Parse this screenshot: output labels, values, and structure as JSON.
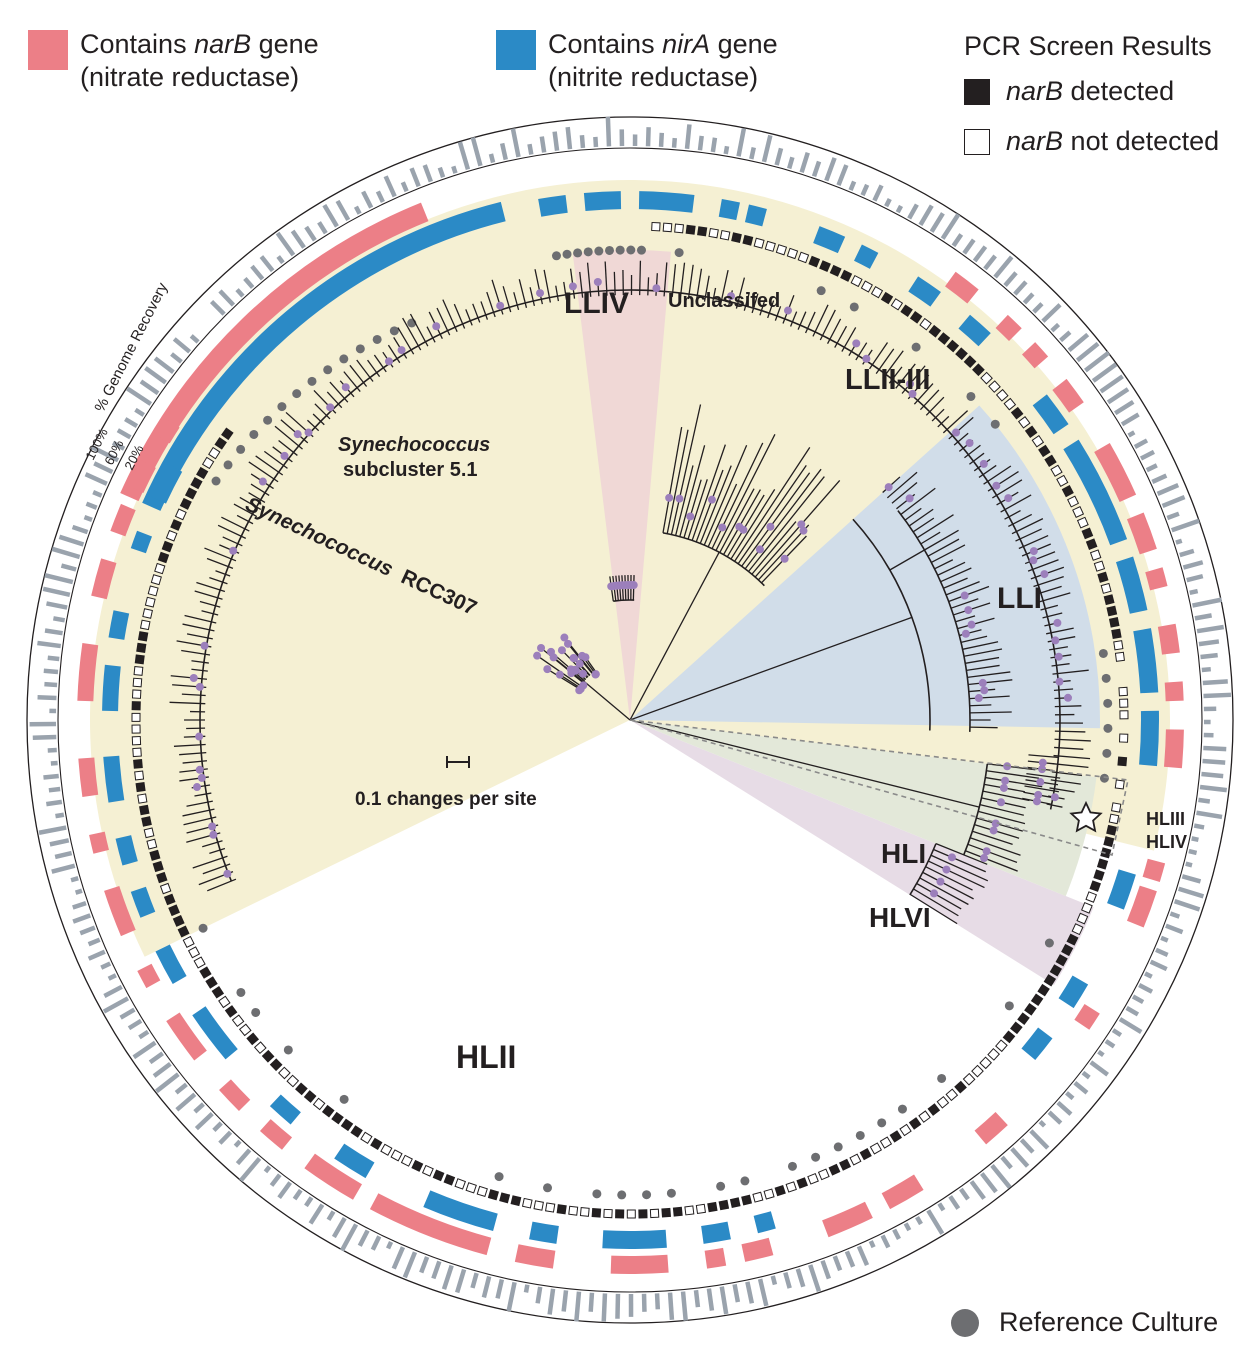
{
  "legend": {
    "narB_box": {
      "prefix": "Contains ",
      "gene": "narB",
      "suffix": " gene",
      "line2": "(nitrate reductase)",
      "color": "#ec7f87"
    },
    "nirA_box": {
      "prefix": "Contains ",
      "gene": "nirA",
      "suffix": " gene",
      "line2": "(nitrite reductase)",
      "color": "#2b8ac6"
    },
    "pcr": {
      "title": "PCR Screen Results",
      "detected_gene": "narB",
      "detected_suffix": " detected",
      "not_detected_gene": "narB",
      "not_detected_suffix": " not detected"
    },
    "reference": "Reference Culture"
  },
  "ring_labels": {
    "genome_recovery": "% Genome Recovery",
    "ticks": [
      "100%",
      "60%",
      "20%"
    ]
  },
  "clades": {
    "llv": "LLIV",
    "unclassified": "Unclassifed",
    "llii_iii": "LLII-III",
    "lli": "LLI",
    "hli": "HLI",
    "hlvi": "HLVI",
    "hliii": "HLIII",
    "hliv": "HLIV",
    "hlii": "HLII",
    "syn51_line1": "Synechococcus",
    "syn51_line2": "subcluster 5.1",
    "rcc307_genus": "Synechococcus",
    "rcc307_strain": "RCC307"
  },
  "scale_bar": "0.1 changes per site",
  "colors": {
    "narB": "#ec7f87",
    "nirA": "#2b8ac6",
    "node": "#9c7fbb",
    "reference": "#6d6e71",
    "bars": "#9aa3ad",
    "hlii_wedge": "#f5f0d3",
    "lli_wedge": "#d1dde9",
    "llv_wedge": "#f0d8d6",
    "hli_wedge": "#e3e8d9",
    "hlvi_wedge": "#e7dce6"
  }
}
